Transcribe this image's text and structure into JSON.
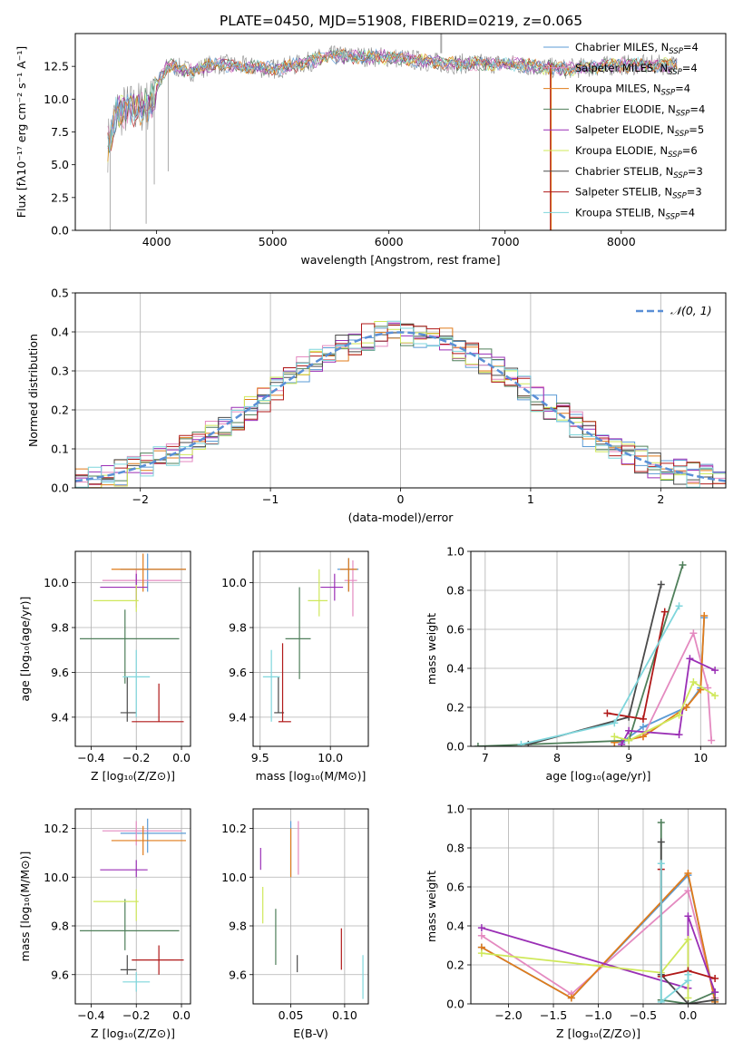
{
  "colors": {
    "chabrier_miles": "#5b9bd5",
    "salpeter_miles": "#e48ac0",
    "kroupa_miles": "#e07b1a",
    "chabrier_elodie": "#4f7f5a",
    "salpeter_elodie": "#9a2fb5",
    "kroupa_elodie": "#cfe85a",
    "chabrier_stelib": "#4a4a4a",
    "salpeter_stelib": "#b01818",
    "kroupa_stelib": "#7fd6dc"
  },
  "chart_data": [
    {
      "id": "spectrum",
      "type": "line",
      "title": "PLATE=0450, MJD=51908, FIBERID=0219, z=0.065",
      "xlabel": "wavelength [Angstrom, rest frame]",
      "ylabel": "Flux [fλ10⁻¹⁷ erg cm⁻² s⁻¹ A⁻¹]",
      "xlim": [
        3300,
        8900
      ],
      "ylim": [
        0,
        15
      ],
      "xticks": [
        "4000",
        "5000",
        "6000",
        "7000",
        "8000"
      ],
      "yticks": [
        "0.0",
        "2.5",
        "5.0",
        "7.5",
        "10.0",
        "12.5"
      ],
      "legend": [
        {
          "key": "chabrier_miles",
          "label": "Chabrier MILES, N",
          "sub": "SSP",
          "tail": "=4"
        },
        {
          "key": "salpeter_miles",
          "label": "Salpeter MILES, N",
          "sub": "SSP",
          "tail": "=4"
        },
        {
          "key": "kroupa_miles",
          "label": "Kroupa MILES, N",
          "sub": "SSP",
          "tail": "=4"
        },
        {
          "key": "chabrier_elodie",
          "label": "Chabrier ELODIE, N",
          "sub": "SSP",
          "tail": "=4"
        },
        {
          "key": "salpeter_elodie",
          "label": "Salpeter ELODIE, N",
          "sub": "SSP",
          "tail": "=5"
        },
        {
          "key": "kroupa_elodie",
          "label": "Kroupa ELODIE, N",
          "sub": "SSP",
          "tail": "=6"
        },
        {
          "key": "chabrier_stelib",
          "label": "Chabrier STELIB, N",
          "sub": "SSP",
          "tail": "=3"
        },
        {
          "key": "salpeter_stelib",
          "label": "Salpeter STELIB, N",
          "sub": "SSP",
          "tail": "=3"
        },
        {
          "key": "kroupa_stelib",
          "label": "Kroupa STELIB, N",
          "sub": "SSP",
          "tail": "=4"
        }
      ],
      "continuum": [
        [
          3580,
          6.5
        ],
        [
          3650,
          9
        ],
        [
          3800,
          9.3
        ],
        [
          3950,
          9.6
        ],
        [
          4000,
          11
        ],
        [
          4100,
          12.6
        ],
        [
          4300,
          12.1
        ],
        [
          4500,
          12.7
        ],
        [
          5000,
          12.3
        ],
        [
          5200,
          12.6
        ],
        [
          5500,
          13.3
        ],
        [
          6000,
          13.2
        ],
        [
          6500,
          12.7
        ],
        [
          7000,
          12.7
        ],
        [
          7500,
          12.3
        ],
        [
          8000,
          12.6
        ],
        [
          8500,
          12.6
        ]
      ],
      "drops": [
        [
          3600,
          0
        ],
        [
          3910,
          0.5
        ],
        [
          3980,
          3.5
        ],
        [
          4100,
          4.5
        ],
        [
          6780,
          0
        ]
      ]
    },
    {
      "id": "residuals",
      "type": "histogram",
      "xlabel": "(data-model)/error",
      "ylabel": "Normed distribution",
      "xlim": [
        -2.5,
        2.5
      ],
      "ylim": [
        0,
        0.5
      ],
      "xticks": [
        "−2",
        "−1",
        "0",
        "1",
        "2"
      ],
      "yticks": [
        "0.0",
        "0.1",
        "0.2",
        "0.3",
        "0.4",
        "0.5"
      ],
      "legend_label": "𝒩(0, 1)",
      "bin_width": 0.1
    },
    {
      "id": "age_vs_Z",
      "type": "errorbar",
      "xlabel": "Z [log₁₀(Z/Z⊙)]",
      "ylabel": "age  [log₁₀(age/yr)]",
      "xlim": [
        -0.47,
        0.04
      ],
      "ylim": [
        9.27,
        10.14
      ],
      "xticks": [
        "−0.4",
        "−0.2",
        "0.0"
      ],
      "yticks": [
        "9.4",
        "9.6",
        "9.8",
        "10.0"
      ],
      "points": [
        {
          "key": "chabrier_miles",
          "x": -0.15,
          "y": 10.06,
          "xerr": [
            0.12,
            0.17
          ],
          "yerr": [
            0.1,
            0.07
          ]
        },
        {
          "key": "salpeter_miles",
          "x": -0.2,
          "y": 10.01,
          "xerr": [
            0.15,
            0.2
          ],
          "yerr": [
            0.12,
            0.05
          ]
        },
        {
          "key": "kroupa_miles",
          "x": -0.17,
          "y": 10.06,
          "xerr": [
            0.14,
            0.19
          ],
          "yerr": [
            0.1,
            0.07
          ]
        },
        {
          "key": "chabrier_elodie",
          "x": -0.25,
          "y": 9.75,
          "xerr": [
            0.2,
            0.24
          ],
          "yerr": [
            0.2,
            0.13
          ]
        },
        {
          "key": "salpeter_elodie",
          "x": -0.2,
          "y": 9.98,
          "xerr": [
            0.16,
            0.05
          ],
          "yerr": [
            0.06,
            0.06
          ]
        },
        {
          "key": "kroupa_elodie",
          "x": -0.2,
          "y": 9.92,
          "xerr": [
            0.19,
            0.01
          ],
          "yerr": [
            0.05,
            0.07
          ]
        },
        {
          "key": "chabrier_stelib",
          "x": -0.24,
          "y": 9.42,
          "xerr": [
            0.03,
            0.04
          ],
          "yerr": [
            0.04,
            0.16
          ]
        },
        {
          "key": "salpeter_stelib",
          "x": -0.1,
          "y": 9.38,
          "xerr": [
            0.12,
            0.11
          ],
          "yerr": [
            0.0,
            0.17
          ]
        },
        {
          "key": "kroupa_stelib",
          "x": -0.2,
          "y": 9.58,
          "xerr": [
            0.06,
            0.06
          ],
          "yerr": [
            0.18,
            0.12
          ]
        }
      ]
    },
    {
      "id": "age_vs_mass",
      "type": "errorbar",
      "xlabel": "mass [log₁₀(M/M⊙)]",
      "ylabel": "",
      "xlim": [
        9.45,
        10.27
      ],
      "ylim": [
        9.27,
        10.14
      ],
      "xticks": [
        "9.5",
        "10.0"
      ],
      "yticks": [
        "9.4",
        "9.6",
        "9.8",
        "10.0"
      ],
      "points": [
        {
          "key": "chabrier_miles",
          "x": 10.13,
          "y": 10.06,
          "xerr": [
            0.08,
            0.07
          ],
          "yerr": [
            0.1,
            0.05
          ]
        },
        {
          "key": "salpeter_miles",
          "x": 10.16,
          "y": 10.01,
          "xerr": [
            0.06,
            0.03
          ],
          "yerr": [
            0.16,
            0.09
          ]
        },
        {
          "key": "kroupa_miles",
          "x": 10.13,
          "y": 10.06,
          "xerr": [
            0.06,
            0.06
          ],
          "yerr": [
            0.1,
            0.05
          ]
        },
        {
          "key": "chabrier_elodie",
          "x": 9.78,
          "y": 9.75,
          "xerr": [
            0.1,
            0.08
          ],
          "yerr": [
            0.18,
            0.23
          ]
        },
        {
          "key": "salpeter_elodie",
          "x": 10.03,
          "y": 9.98,
          "xerr": [
            0.1,
            0.06
          ],
          "yerr": [
            0.06,
            0.06
          ]
        },
        {
          "key": "kroupa_elodie",
          "x": 9.92,
          "y": 9.92,
          "xerr": [
            0.08,
            0.06
          ],
          "yerr": [
            0.07,
            0.14
          ]
        },
        {
          "key": "chabrier_stelib",
          "x": 9.63,
          "y": 9.42,
          "xerr": [
            0.03,
            0.04
          ],
          "yerr": [
            0.0,
            0.16
          ]
        },
        {
          "key": "salpeter_stelib",
          "x": 9.66,
          "y": 9.38,
          "xerr": [
            0.03,
            0.06
          ],
          "yerr": [
            0.0,
            0.35
          ]
        },
        {
          "key": "kroupa_stelib",
          "x": 9.58,
          "y": 9.58,
          "xerr": [
            0.06,
            0.06
          ],
          "yerr": [
            0.2,
            0.12
          ]
        }
      ]
    },
    {
      "id": "weight_vs_age",
      "type": "line",
      "xlabel": "age  [log₁₀(age/yr)]",
      "ylabel": "mass weight",
      "xlim": [
        6.8,
        10.35
      ],
      "ylim": [
        0,
        1
      ],
      "xticks": [
        "7",
        "8",
        "9",
        "10"
      ],
      "yticks": [
        "0.0",
        "0.2",
        "0.4",
        "0.6",
        "0.8",
        "1.0"
      ],
      "series": [
        {
          "key": "chabrier_miles",
          "x": [
            8.9,
            9.2,
            9.8,
            10.0,
            10.05
          ],
          "y": [
            0.02,
            0.1,
            0.2,
            0.3,
            0.66
          ]
        },
        {
          "key": "salpeter_miles",
          "x": [
            8.8,
            9.2,
            9.9,
            10.1,
            10.15
          ],
          "y": [
            0.02,
            0.05,
            0.58,
            0.3,
            0.03
          ]
        },
        {
          "key": "kroupa_miles",
          "x": [
            8.8,
            9.2,
            9.8,
            10.0,
            10.05
          ],
          "y": [
            0.02,
            0.05,
            0.2,
            0.29,
            0.67
          ]
        },
        {
          "key": "chabrier_elodie",
          "x": [
            6.9,
            9.0,
            9.75
          ],
          "y": [
            0.0,
            0.03,
            0.93
          ]
        },
        {
          "key": "salpeter_elodie",
          "x": [
            8.9,
            9.0,
            9.7,
            9.85,
            10.2
          ],
          "y": [
            0.01,
            0.08,
            0.06,
            0.45,
            0.39
          ]
        },
        {
          "key": "kroupa_elodie",
          "x": [
            8.8,
            9.0,
            9.7,
            9.9,
            10.2
          ],
          "y": [
            0.05,
            0.03,
            0.16,
            0.33,
            0.26
          ]
        },
        {
          "key": "chabrier_stelib",
          "x": [
            7.6,
            9.0,
            9.45
          ],
          "y": [
            0.01,
            0.15,
            0.83
          ]
        },
        {
          "key": "salpeter_stelib",
          "x": [
            8.7,
            9.2,
            9.5
          ],
          "y": [
            0.17,
            0.14,
            0.69
          ]
        },
        {
          "key": "kroupa_stelib",
          "x": [
            7.5,
            8.8,
            9.7
          ],
          "y": [
            0.01,
            0.12,
            0.72
          ]
        }
      ]
    },
    {
      "id": "mass_vs_Z",
      "type": "errorbar",
      "xlabel": "Z [log₁₀(Z/Z⊙)]",
      "ylabel": "mass [log₁₀(M/M⊙)]",
      "xlim": [
        -0.47,
        0.04
      ],
      "ylim": [
        9.48,
        10.28
      ],
      "xticks": [
        "−0.4",
        "−0.2",
        "0.0"
      ],
      "yticks": [
        "9.6",
        "9.8",
        "10.0",
        "10.2"
      ],
      "points": [
        {
          "key": "chabrier_miles",
          "x": -0.15,
          "y": 10.18,
          "xerr": [
            0.12,
            0.17
          ],
          "yerr": [
            0.08,
            0.06
          ]
        },
        {
          "key": "salpeter_miles",
          "x": -0.2,
          "y": 10.19,
          "xerr": [
            0.15,
            0.2
          ],
          "yerr": [
            0.06,
            0.04
          ]
        },
        {
          "key": "kroupa_miles",
          "x": -0.17,
          "y": 10.15,
          "xerr": [
            0.14,
            0.19
          ],
          "yerr": [
            0.06,
            0.06
          ]
        },
        {
          "key": "chabrier_elodie",
          "x": -0.25,
          "y": 9.78,
          "xerr": [
            0.2,
            0.24
          ],
          "yerr": [
            0.08,
            0.13
          ]
        },
        {
          "key": "salpeter_elodie",
          "x": -0.2,
          "y": 10.03,
          "xerr": [
            0.16,
            0.05
          ],
          "yerr": [
            0.03,
            0.04
          ]
        },
        {
          "key": "kroupa_elodie",
          "x": -0.2,
          "y": 9.9,
          "xerr": [
            0.19,
            0.01
          ],
          "yerr": [
            0.08,
            0.05
          ]
        },
        {
          "key": "chabrier_stelib",
          "x": -0.24,
          "y": 9.62,
          "xerr": [
            0.03,
            0.04
          ],
          "yerr": [
            0.02,
            0.06
          ]
        },
        {
          "key": "salpeter_stelib",
          "x": -0.1,
          "y": 9.66,
          "xerr": [
            0.12,
            0.11
          ],
          "yerr": [
            0.06,
            0.06
          ]
        },
        {
          "key": "kroupa_stelib",
          "x": -0.2,
          "y": 9.57,
          "xerr": [
            0.06,
            0.06
          ],
          "yerr": [
            0.04,
            0.04
          ]
        }
      ]
    },
    {
      "id": "mass_vs_ebv",
      "type": "errorbar",
      "xlabel": "E(B-V)",
      "ylabel": "",
      "xlim": [
        0.015,
        0.122
      ],
      "ylim": [
        9.48,
        10.28
      ],
      "xticks": [
        "0.05",
        "0.10"
      ],
      "yticks": [
        "9.6",
        "9.8",
        "10.0",
        "10.2"
      ],
      "points": [
        {
          "key": "chabrier_miles",
          "x": 0.05,
          "y": 10.13,
          "xerr": [
            0,
            0
          ],
          "yerr": [
            0.13,
            0.1
          ]
        },
        {
          "key": "salpeter_miles",
          "x": 0.057,
          "y": 10.13,
          "xerr": [
            0,
            0
          ],
          "yerr": [
            0.12,
            0.1
          ]
        },
        {
          "key": "kroupa_miles",
          "x": 0.05,
          "y": 10.1,
          "xerr": [
            0,
            0
          ],
          "yerr": [
            0.1,
            0.1
          ]
        },
        {
          "key": "chabrier_elodie",
          "x": 0.036,
          "y": 9.75,
          "xerr": [
            0,
            0
          ],
          "yerr": [
            0.11,
            0.12
          ]
        },
        {
          "key": "salpeter_elodie",
          "x": 0.022,
          "y": 10.05,
          "xerr": [
            0,
            0
          ],
          "yerr": [
            0.02,
            0.07
          ]
        },
        {
          "key": "kroupa_elodie",
          "x": 0.024,
          "y": 9.9,
          "xerr": [
            0,
            0
          ],
          "yerr": [
            0.09,
            0.06
          ]
        },
        {
          "key": "chabrier_stelib",
          "x": 0.056,
          "y": 9.64,
          "xerr": [
            0,
            0
          ],
          "yerr": [
            0.03,
            0.04
          ]
        },
        {
          "key": "salpeter_stelib",
          "x": 0.097,
          "y": 9.7,
          "xerr": [
            0,
            0
          ],
          "yerr": [
            0.08,
            0.09
          ]
        },
        {
          "key": "kroupa_stelib",
          "x": 0.117,
          "y": 9.59,
          "xerr": [
            0,
            0
          ],
          "yerr": [
            0.09,
            0.09
          ]
        }
      ]
    },
    {
      "id": "weight_vs_Z",
      "type": "line",
      "xlabel": "Z [log₁₀(Z/Z⊙)]",
      "ylabel": "mass weight",
      "xlim": [
        -2.42,
        0.42
      ],
      "ylim": [
        0,
        1
      ],
      "xticks": [
        "−2.0",
        "−1.5",
        "−1.0",
        "−0.5",
        "0.0"
      ],
      "yticks": [
        "0.0",
        "0.2",
        "0.4",
        "0.6",
        "0.8",
        "1.0"
      ],
      "series": [
        {
          "key": "chabrier_miles",
          "x": [
            -2.3,
            -1.3,
            0.0,
            0.3
          ],
          "y": [
            0.29,
            0.03,
            0.66,
            0.02
          ]
        },
        {
          "key": "salpeter_miles",
          "x": [
            -2.3,
            -1.3,
            0.0,
            0.3
          ],
          "y": [
            0.35,
            0.05,
            0.58,
            0.03
          ]
        },
        {
          "key": "kroupa_miles",
          "x": [
            -2.3,
            -1.3,
            0.0,
            0.3
          ],
          "y": [
            0.29,
            0.03,
            0.67,
            0.01
          ]
        },
        {
          "key": "chabrier_elodie",
          "x": [
            -0.3,
            -0.3,
            0.0,
            0.3
          ],
          "y": [
            0.93,
            0.02,
            0.0,
            0.06
          ]
        },
        {
          "key": "salpeter_elodie",
          "x": [
            -2.3,
            0.0,
            0.0,
            0.3
          ],
          "y": [
            0.39,
            0.08,
            0.45,
            0.06
          ]
        },
        {
          "key": "kroupa_elodie",
          "x": [
            -2.3,
            -0.3,
            0.0,
            0.0
          ],
          "y": [
            0.26,
            0.16,
            0.33,
            0.03
          ]
        },
        {
          "key": "chabrier_stelib",
          "x": [
            -0.3,
            -0.3,
            0.0,
            0.3
          ],
          "y": [
            0.83,
            0.15,
            0.0,
            0.02
          ]
        },
        {
          "key": "salpeter_stelib",
          "x": [
            -0.3,
            -0.3,
            0.0,
            0.3
          ],
          "y": [
            0.69,
            0.14,
            0.17,
            0.13
          ]
        },
        {
          "key": "kroupa_stelib",
          "x": [
            -0.3,
            -0.3,
            0.0,
            0.0
          ],
          "y": [
            0.72,
            0.01,
            0.12,
            0.15
          ]
        }
      ]
    }
  ]
}
